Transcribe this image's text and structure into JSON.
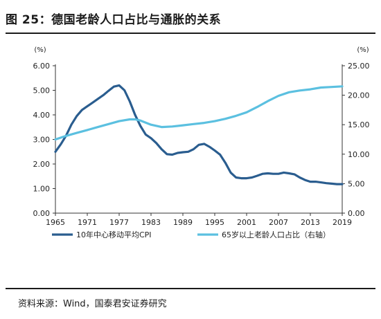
{
  "figure_title": "图 25：德国老龄人口占比与通胀的关系",
  "source": "资料来源：Wind，国泰君安证券研究",
  "chart_data": {
    "type": "line",
    "title": "",
    "ylabel_left": "(%)",
    "ylabel_right": "(%)",
    "ylim_left": [
      0,
      6
    ],
    "ylim_right": [
      0,
      25
    ],
    "y_left_ticks": [
      "0.00",
      "1.00",
      "2.00",
      "3.00",
      "4.00",
      "5.00",
      "6.00"
    ],
    "y_right_ticks": [
      "0.00",
      "5.00",
      "10.00",
      "15.00",
      "20.00",
      "25.00"
    ],
    "xlim": [
      1965,
      2019
    ],
    "x_ticks": [
      "1965",
      "1971",
      "1977",
      "1983",
      "1989",
      "1995",
      "2001",
      "2007",
      "2013",
      "2019"
    ],
    "grid": false,
    "legend_position": "bottom",
    "series": [
      {
        "name": "10年中心移动平均CPI",
        "axis": "left",
        "color": "#2a5d8f",
        "x": [
          1965,
          1966,
          1967,
          1968,
          1969,
          1970,
          1971,
          1972,
          1973,
          1974,
          1975,
          1976,
          1977,
          1978,
          1979,
          1980,
          1981,
          1982,
          1983,
          1984,
          1985,
          1986,
          1987,
          1988,
          1989,
          1990,
          1991,
          1992,
          1993,
          1994,
          1995,
          1996,
          1997,
          1998,
          1999,
          2000,
          2001,
          2002,
          2003,
          2004,
          2005,
          2006,
          2007,
          2008,
          2009,
          2010,
          2011,
          2012,
          2013,
          2014,
          2015,
          2016,
          2017,
          2018,
          2019
        ],
        "values": [
          2.5,
          2.8,
          3.15,
          3.6,
          3.95,
          4.2,
          4.35,
          4.5,
          4.65,
          4.8,
          4.98,
          5.15,
          5.2,
          5.0,
          4.55,
          4.0,
          3.55,
          3.2,
          3.05,
          2.85,
          2.6,
          2.4,
          2.38,
          2.45,
          2.48,
          2.5,
          2.6,
          2.78,
          2.82,
          2.7,
          2.55,
          2.38,
          2.05,
          1.65,
          1.45,
          1.42,
          1.42,
          1.45,
          1.52,
          1.6,
          1.62,
          1.6,
          1.6,
          1.65,
          1.62,
          1.58,
          1.45,
          1.35,
          1.28,
          1.28,
          1.25,
          1.22,
          1.2,
          1.18,
          1.18
        ]
      },
      {
        "name": "65岁以上老龄人口占比（右轴）",
        "axis": "right",
        "color": "#5bc0e0",
        "x": [
          1965,
          1967,
          1969,
          1971,
          1973,
          1975,
          1977,
          1979,
          1980,
          1981,
          1983,
          1985,
          1987,
          1989,
          1991,
          1993,
          1995,
          1997,
          1999,
          2001,
          2003,
          2005,
          2007,
          2009,
          2011,
          2013,
          2015,
          2017,
          2019
        ],
        "values": [
          12.5,
          13.1,
          13.6,
          14.1,
          14.6,
          15.1,
          15.6,
          15.9,
          15.9,
          15.7,
          15.0,
          14.6,
          14.7,
          14.9,
          15.1,
          15.3,
          15.6,
          16.0,
          16.5,
          17.1,
          18.0,
          19.0,
          19.9,
          20.5,
          20.8,
          21.0,
          21.3,
          21.4,
          21.5
        ]
      }
    ]
  }
}
